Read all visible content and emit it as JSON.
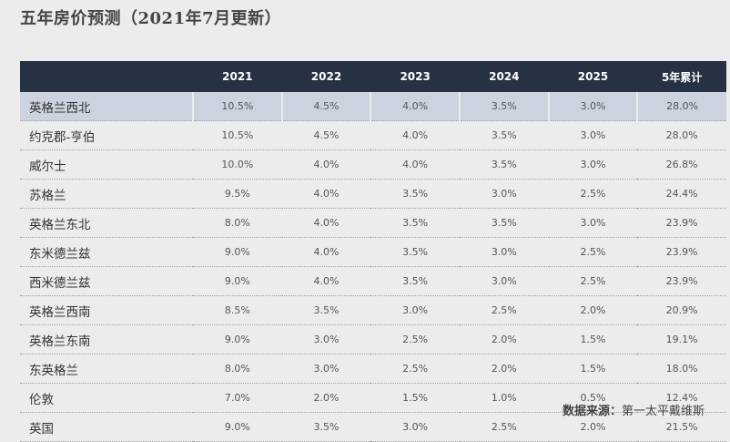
{
  "title": "五年房价预测（2021年7月更新）",
  "table": {
    "columns": [
      "2021",
      "2022",
      "2023",
      "2024",
      "2025",
      "5年累计"
    ],
    "rows": [
      {
        "region": "英格兰西北",
        "values": [
          "10.5%",
          "4.5%",
          "4.0%",
          "3.5%",
          "3.0%",
          "28.0%"
        ],
        "highlighted": true
      },
      {
        "region": "约克郡-亨伯",
        "values": [
          "10.5%",
          "4.5%",
          "4.0%",
          "3.5%",
          "3.0%",
          "28.0%"
        ]
      },
      {
        "region": "威尔士",
        "values": [
          "10.0%",
          "4.0%",
          "4.0%",
          "3.5%",
          "3.0%",
          "26.8%"
        ]
      },
      {
        "region": "苏格兰",
        "values": [
          "9.5%",
          "4.0%",
          "3.5%",
          "3.0%",
          "2.5%",
          "24.4%"
        ]
      },
      {
        "region": "英格兰东北",
        "values": [
          "8.0%",
          "4.0%",
          "3.5%",
          "3.5%",
          "3.0%",
          "23.9%"
        ]
      },
      {
        "region": "东米德兰兹",
        "values": [
          "9.0%",
          "4.0%",
          "3.5%",
          "3.0%",
          "2.5%",
          "23.9%"
        ]
      },
      {
        "region": "西米德兰兹",
        "values": [
          "9.0%",
          "4.0%",
          "3.5%",
          "3.0%",
          "2.5%",
          "23.9%"
        ]
      },
      {
        "region": "英格兰西南",
        "values": [
          "8.5%",
          "3.5%",
          "3.0%",
          "2.5%",
          "2.0%",
          "20.9%"
        ]
      },
      {
        "region": "英格兰东南",
        "values": [
          "9.0%",
          "3.0%",
          "2.5%",
          "2.0%",
          "1.5%",
          "19.1%"
        ]
      },
      {
        "region": "东英格兰",
        "values": [
          "8.0%",
          "3.0%",
          "2.5%",
          "2.0%",
          "1.5%",
          "18.0%"
        ]
      },
      {
        "region": "伦敦",
        "values": [
          "7.0%",
          "2.0%",
          "1.5%",
          "1.0%",
          "0.5%",
          "12.4%"
        ]
      },
      {
        "region": "英国",
        "values": [
          "9.0%",
          "3.5%",
          "3.0%",
          "2.5%",
          "2.0%",
          "21.5%"
        ]
      }
    ]
  },
  "source": {
    "label": "数据来源：",
    "value": "第一太平戴维斯"
  },
  "colors": {
    "header_bg": "#263244",
    "highlight_bg": "#ccd2de",
    "page_bg": "#ececec"
  }
}
